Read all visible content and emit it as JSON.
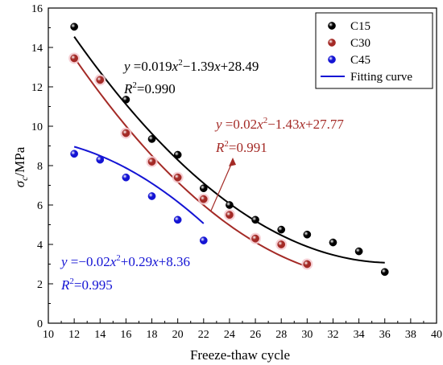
{
  "chart_data": {
    "type": "scatter",
    "xlabel": "Freeze-thaw cycle",
    "ylabel_main": "σ",
    "ylabel_sub": "c",
    "ylabel_unit": "/MPa",
    "xlim": [
      10,
      40
    ],
    "ylim": [
      0,
      16
    ],
    "xticks": [
      10,
      12,
      14,
      16,
      18,
      20,
      22,
      24,
      26,
      28,
      30,
      32,
      34,
      36,
      38,
      40
    ],
    "yticks": [
      0,
      2,
      4,
      6,
      8,
      10,
      12,
      14,
      16
    ],
    "grid": false,
    "legend_position": "top-right",
    "series": [
      {
        "name": "C15",
        "color": "#000000",
        "x": [
          12,
          14,
          16,
          18,
          20,
          22,
          24,
          26,
          28,
          30,
          32,
          34,
          36
        ],
        "y": [
          15.05,
          12.35,
          11.35,
          9.35,
          8.55,
          6.85,
          6.0,
          5.25,
          4.75,
          4.5,
          4.1,
          3.65,
          2.6
        ],
        "fit": {
          "a": 0.019,
          "b": -1.39,
          "c": 28.49,
          "x_range": [
            12,
            36
          ]
        },
        "eq_parts": [
          "y",
          " =0.019",
          "x",
          "2",
          "−1.39",
          "x",
          "+28.49"
        ],
        "r2_parts": [
          "R",
          "2",
          "=0.990"
        ]
      },
      {
        "name": "C30",
        "color": "#a42a26",
        "x": [
          12,
          14,
          16,
          18,
          20,
          22,
          24,
          26,
          28,
          30
        ],
        "y": [
          13.45,
          12.35,
          9.65,
          8.2,
          7.4,
          6.3,
          5.5,
          4.3,
          4.0,
          3.0
        ],
        "fit": {
          "a": 0.02,
          "b": -1.43,
          "c": 27.77,
          "x_range": [
            12,
            30
          ]
        },
        "eq_parts": [
          "y",
          " =0.02",
          "x",
          "2",
          "−1.43",
          "x",
          "+27.77"
        ],
        "r2_parts": [
          "R",
          "2",
          "=0.991"
        ]
      },
      {
        "name": "C45",
        "color": "#1414d4",
        "x": [
          12,
          14,
          16,
          18,
          20,
          22
        ],
        "y": [
          8.6,
          8.3,
          7.4,
          6.45,
          5.25,
          4.2
        ],
        "fit": {
          "a": -0.02,
          "b": 0.29,
          "c": 8.36,
          "x_range": [
            12,
            22
          ]
        },
        "eq_parts": [
          "y",
          " =−0.02",
          "x",
          "2",
          "+0.29",
          "x",
          "+8.36"
        ],
        "r2_parts": [
          "R",
          "2",
          "=0.995"
        ]
      }
    ],
    "legend": {
      "fitting_label": "Fitting curve",
      "fitting_color": "#1414d4"
    }
  }
}
